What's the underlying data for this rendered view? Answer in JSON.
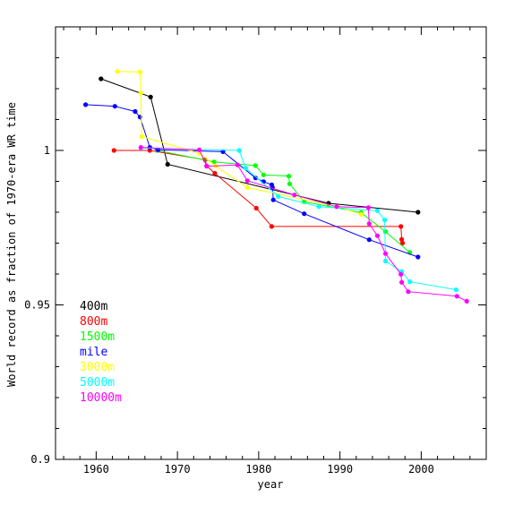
{
  "chart_data": {
    "type": "line",
    "xlabel": "year",
    "ylabel": "World record as fraction of 1970-era WR time",
    "xlim": [
      1955,
      2008
    ],
    "ylim": [
      0.9,
      1.04
    ],
    "x_ticks": [
      1960,
      1970,
      1980,
      1990,
      2000
    ],
    "y_ticks": [
      0.9,
      0.95,
      1
    ],
    "y_tick_labels": [
      "0.9",
      "0.95",
      "1"
    ],
    "grid": false,
    "legend_position": "lower-left",
    "series": [
      {
        "name": "400m",
        "color": "#000000",
        "points": [
          [
            1960.6,
            1.0232
          ],
          [
            1966.7,
            1.0173
          ],
          [
            1968.8,
            0.9955
          ],
          [
            1988.6,
            0.9829
          ],
          [
            1999.6,
            0.98
          ]
        ]
      },
      {
        "name": "800m",
        "color": "#ff0000",
        "points": [
          [
            1962.2,
            1.0
          ],
          [
            1966.6,
            1.0
          ],
          [
            1973.4,
            0.997
          ],
          [
            1973.6,
            0.995
          ],
          [
            1974.6,
            0.9926
          ],
          [
            1979.7,
            0.9813
          ],
          [
            1981.6,
            0.9754
          ],
          [
            1997.5,
            0.9754
          ],
          [
            1997.6,
            0.9712
          ],
          [
            1997.7,
            0.97
          ]
        ]
      },
      {
        "name": "1500m",
        "color": "#00ff00",
        "points": [
          [
            1967.5,
            1.0
          ],
          [
            1974.5,
            0.9963
          ],
          [
            1979.6,
            0.9951
          ],
          [
            1980.6,
            0.9921
          ],
          [
            1983.7,
            0.9917
          ],
          [
            1983.8,
            0.9892
          ],
          [
            1985.6,
            0.9834
          ],
          [
            1992.6,
            0.9799
          ],
          [
            1995.6,
            0.9737
          ],
          [
            1998.6,
            0.967
          ]
        ]
      },
      {
        "name": "mile",
        "color": "#0000ff",
        "points": [
          [
            1958.7,
            1.0148
          ],
          [
            1962.3,
            1.0143
          ],
          [
            1964.8,
            1.0126
          ],
          [
            1965.4,
            1.0108
          ],
          [
            1966.6,
            1.001
          ],
          [
            1967.6,
            1.0002
          ],
          [
            1975.6,
            0.9996
          ],
          [
            1979.6,
            0.9911
          ],
          [
            1980.6,
            0.9899
          ],
          [
            1981.6,
            0.9889
          ],
          [
            1981.7,
            0.988
          ],
          [
            1981.8,
            0.984
          ],
          [
            1985.6,
            0.9795
          ],
          [
            1993.6,
            0.9711
          ],
          [
            1999.6,
            0.9655
          ]
        ]
      },
      {
        "name": "3000m",
        "color": "#ffff00",
        "points": [
          [
            1962.6,
            1.0256
          ],
          [
            1965.4,
            1.0254
          ],
          [
            1965.5,
            1.0186
          ],
          [
            1965.6,
            1.0045
          ],
          [
            1972.7,
            0.9991
          ],
          [
            1974.7,
            0.995
          ],
          [
            1978.6,
            0.988
          ],
          [
            1989.7,
            0.9818
          ],
          [
            1992.6,
            0.9793
          ]
        ]
      },
      {
        "name": "5000m",
        "color": "#00ffff",
        "points": [
          [
            1965.5,
            1.0008
          ],
          [
            1977.6,
            1.0
          ],
          [
            1978.4,
            0.9943
          ],
          [
            1982.4,
            0.9851
          ],
          [
            1987.4,
            0.9818
          ],
          [
            1994.6,
            0.9805
          ],
          [
            1995.5,
            0.9775
          ],
          [
            1995.6,
            0.9642
          ],
          [
            1997.6,
            0.9608
          ],
          [
            1998.6,
            0.9575
          ],
          [
            2004.3,
            0.9549
          ]
        ]
      },
      {
        "name": "10000m",
        "color": "#ff00ff",
        "points": [
          [
            1965.5,
            1.001
          ],
          [
            1972.7,
            1.0002
          ],
          [
            1973.6,
            0.9949
          ],
          [
            1977.4,
            0.9953
          ],
          [
            1978.6,
            0.9902
          ],
          [
            1984.4,
            0.9856
          ],
          [
            1989.6,
            0.9818
          ],
          [
            1993.5,
            0.9815
          ],
          [
            1993.6,
            0.9763
          ],
          [
            1994.6,
            0.9724
          ],
          [
            1995.6,
            0.9666
          ],
          [
            1997.5,
            0.9599
          ],
          [
            1997.6,
            0.9573
          ],
          [
            1998.4,
            0.9543
          ],
          [
            2004.4,
            0.9528
          ],
          [
            2005.6,
            0.9512
          ]
        ]
      }
    ]
  }
}
